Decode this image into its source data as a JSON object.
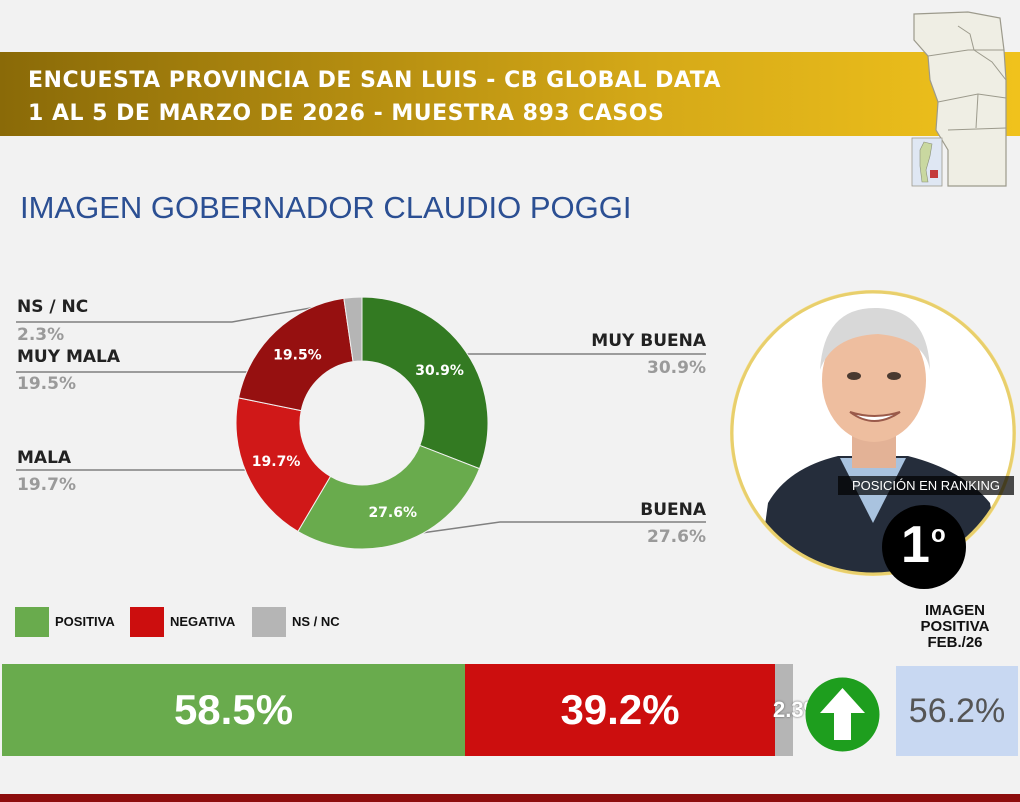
{
  "header": {
    "line1": "ENCUESTA PROVINCIA DE SAN LUIS - CB GLOBAL DATA",
    "line2": "1 AL 5 DE MARZO DE 2026 - MUESTRA 893 CASOS"
  },
  "title": "IMAGEN GOBERNADOR   CLAUDIO POGGI",
  "chart_data": [
    {
      "type": "pie",
      "variant": "donut",
      "slices": [
        {
          "label": "MUY BUENA",
          "value": 30.9,
          "display": "30.9%",
          "color": "#337a22"
        },
        {
          "label": "BUENA",
          "value": 27.6,
          "display": "27.6%",
          "color": "#69ab4d"
        },
        {
          "label": "MALA",
          "value": 19.7,
          "display": "19.7%",
          "color": "#d01818"
        },
        {
          "label": "MUY MALA",
          "value": 19.5,
          "display": "19.5%",
          "color": "#961010"
        },
        {
          "label": "NS / NC",
          "value": 2.3,
          "display": "2.3%",
          "color": "#b5b5b5"
        }
      ]
    },
    {
      "type": "bar",
      "variant": "stacked-horizontal",
      "legend": [
        {
          "label": "POSITIVA",
          "color": "#69ab4d"
        },
        {
          "label": "NEGATIVA",
          "color": "#cc0e0e"
        },
        {
          "label": "NS / NC",
          "color": "#b5b5b5"
        }
      ],
      "segments": [
        {
          "label": "POSITIVA",
          "value": 58.5,
          "display": "58.5%",
          "color": "#69ab4d"
        },
        {
          "label": "NEGATIVA",
          "value": 39.2,
          "display": "39.2%",
          "color": "#cc0e0e"
        },
        {
          "label": "NS / NC",
          "value": 2.3,
          "display": "2.3%",
          "color": "#b5b5b5"
        }
      ]
    }
  ],
  "labels": {
    "nsnc_name": "NS / NC",
    "nsnc_val": "2.3%",
    "muymala_name": "MUY MALA",
    "muymala_val": "19.5%",
    "mala_name": "MALA",
    "mala_val": "19.7%",
    "muybuena_name": "MUY BUENA",
    "muybuena_val": "30.9%",
    "buena_name": "BUENA",
    "buena_val": "27.6%"
  },
  "ranking": {
    "label": "POSICIÓN EN RANKING",
    "position": "1",
    "suffix": "o"
  },
  "previous": {
    "title": "IMAGEN POSITIVA FEB./26",
    "value": "56.2%",
    "trend_icon": "arrow-up-icon",
    "trend_color": "#1e9e1e"
  },
  "colors": {
    "banner": "#c9a014",
    "title": "#2b4f93",
    "bottom_rule": "#8d0d0d"
  }
}
